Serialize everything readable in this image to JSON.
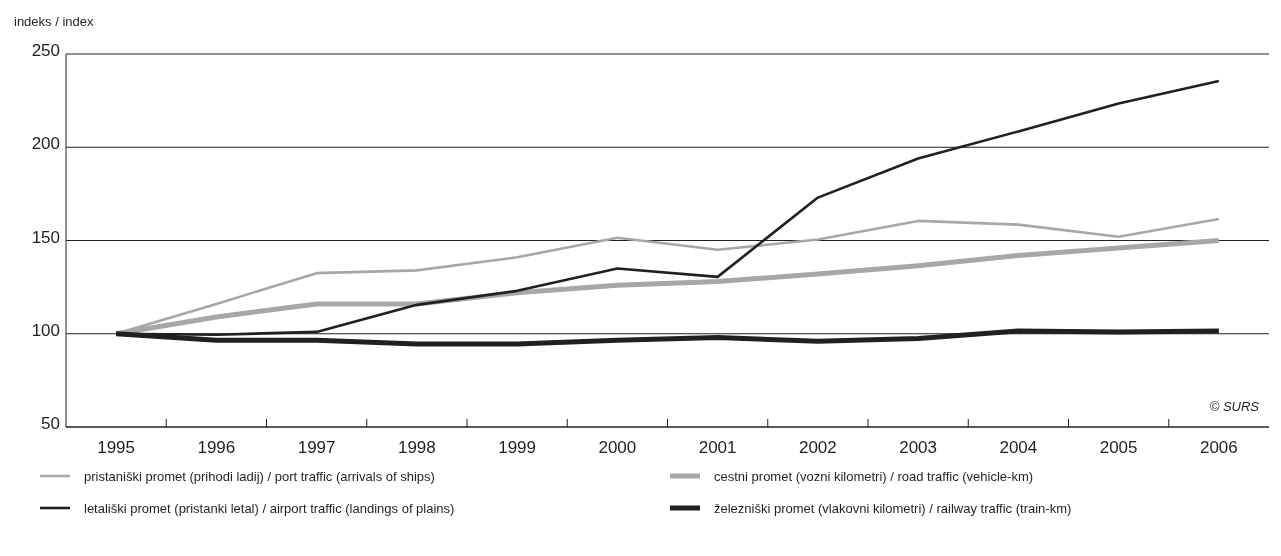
{
  "chart_data": {
    "type": "line",
    "ylabel": "indeks / index",
    "categories": [
      "1995",
      "1996",
      "1997",
      "1998",
      "1999",
      "2000",
      "2001",
      "2002",
      "2003",
      "2004",
      "2005",
      "2006"
    ],
    "ylim": [
      50,
      250
    ],
    "yticks": [
      50,
      100,
      150,
      200,
      250
    ],
    "grid": "y",
    "legend": "bottom",
    "line_style": "solid",
    "annotations": [
      "© SURS"
    ],
    "series": [
      {
        "name": "pristaniški promet (prihodi ladij) / port traffic (arrivals of ships)",
        "color": "#a7a7a9",
        "values": [
          100,
          116,
          132.5,
          134,
          141,
          151.5,
          145,
          150.5,
          160.5,
          158.5,
          152,
          161.5
        ]
      },
      {
        "name": "cestni promet (vozni kilometri) / road traffic (vehicle-km)",
        "color": "#a7a7a9",
        "values": [
          100,
          109,
          116,
          116,
          122,
          126,
          128,
          132,
          136.5,
          142,
          146,
          150
        ]
      },
      {
        "name": "letališki promet (pristanki letal) / airport traffic (landings of plains)",
        "color": "#231f20",
        "values": [
          100,
          99.5,
          101,
          115.5,
          123,
          135,
          130.5,
          173,
          194,
          208.5,
          223.5,
          235.5
        ]
      },
      {
        "name": "železniški promet (vlakovni kilometri) / railway traffic (train-km)",
        "color": "#231f20",
        "values": [
          100,
          96.5,
          96.5,
          94.5,
          94.5,
          96.5,
          98,
          96,
          97.5,
          101.5,
          101,
          101.5
        ]
      }
    ]
  }
}
